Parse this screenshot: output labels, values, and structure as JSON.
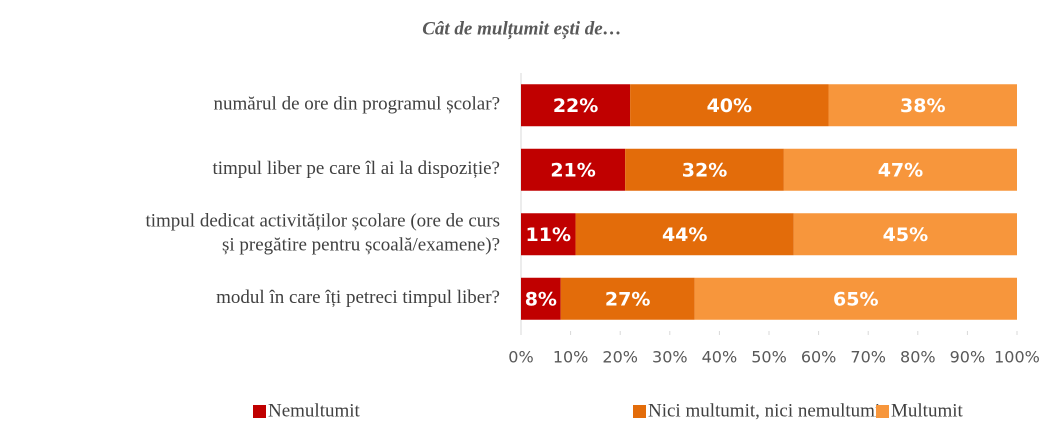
{
  "chart_data": {
    "type": "stacked_bar_horizontal",
    "title": "Cât de mulțumit ești de…",
    "categories": [
      [
        "numărul de ore din programul școlar?"
      ],
      [
        "timpul liber pe care îl ai la dispoziție?"
      ],
      [
        "timpul dedicat activităților școlare (ore de curs",
        "și pregătire pentru școală/examene)?"
      ],
      [
        "modul în care îți petreci timpul liber?"
      ]
    ],
    "series": [
      {
        "name": "Nemultumit",
        "color": "#c00000",
        "values": [
          22,
          21,
          11,
          8
        ],
        "value_labels": [
          "22%",
          "21%",
          "11%",
          "8%"
        ]
      },
      {
        "name": "Nici multumit, nici nemultumit",
        "color": "#e36c0a",
        "values": [
          40,
          32,
          44,
          27
        ],
        "value_labels": [
          "40%",
          "32%",
          "44%",
          "27%"
        ]
      },
      {
        "name": "Multumit",
        "color": "#f7963c",
        "values": [
          38,
          47,
          45,
          65
        ],
        "value_labels": [
          "38%",
          "47%",
          "45%",
          "65%"
        ]
      }
    ],
    "xlim": [
      0,
      100
    ],
    "xticks": [
      {
        "value": 0,
        "label": "0%"
      },
      {
        "value": 10,
        "label": "10%"
      },
      {
        "value": 20,
        "label": "20%"
      },
      {
        "value": 30,
        "label": "30%"
      },
      {
        "value": 40,
        "label": "40%"
      },
      {
        "value": 50,
        "label": "50%"
      },
      {
        "value": 60,
        "label": "60%"
      },
      {
        "value": 70,
        "label": "70%"
      },
      {
        "value": 80,
        "label": "80%"
      },
      {
        "value": 90,
        "label": "90%"
      },
      {
        "value": 100,
        "label": "100%"
      }
    ],
    "legend": "bottom"
  }
}
